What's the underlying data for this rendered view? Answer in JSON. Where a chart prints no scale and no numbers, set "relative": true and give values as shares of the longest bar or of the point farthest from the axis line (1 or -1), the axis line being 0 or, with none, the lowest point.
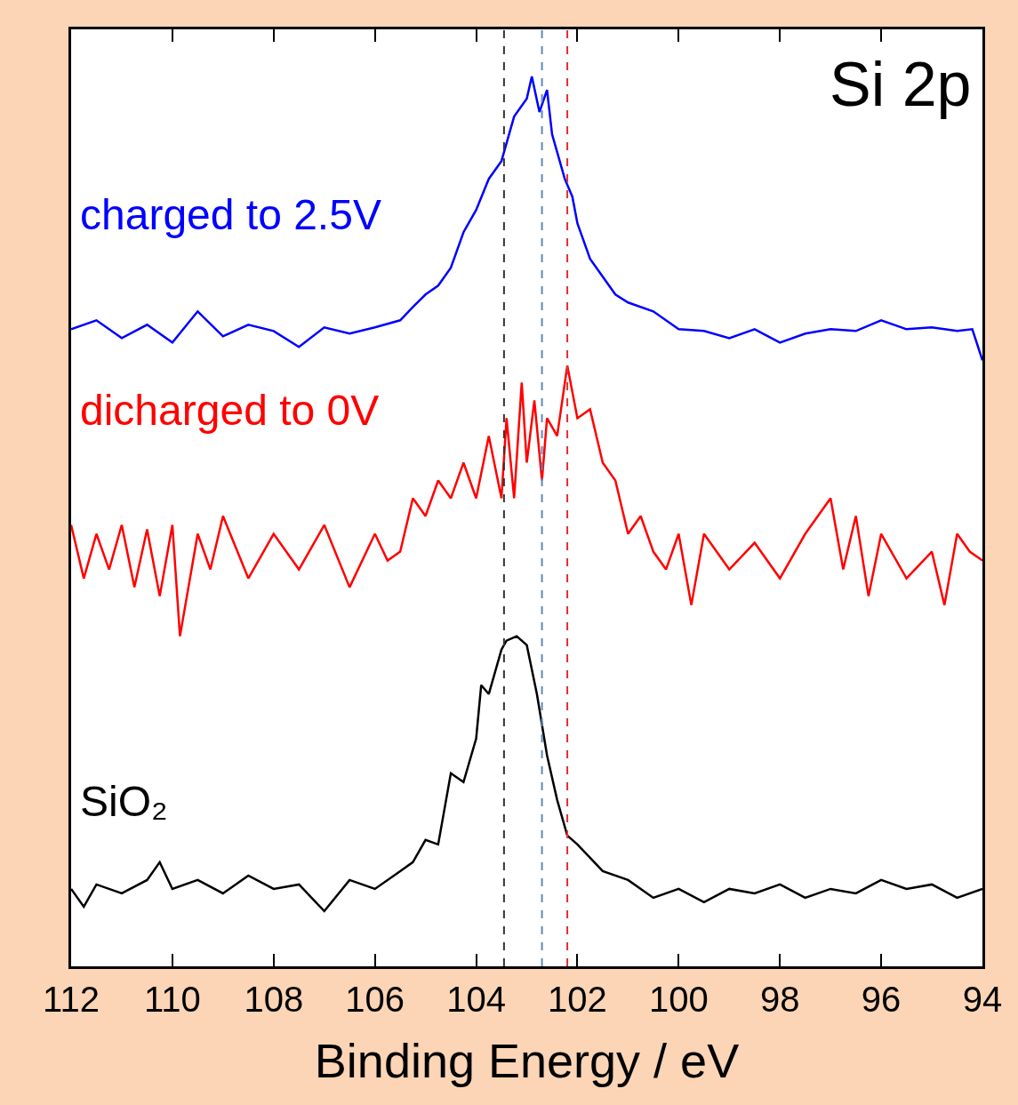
{
  "chart_data": {
    "type": "line",
    "xlabel": "Binding Energy / eV",
    "relative": true,
    "legend": false,
    "grid": false,
    "marker": "none",
    "line_style": "solid",
    "xlim": [
      112,
      94
    ],
    "xticks": [
      112,
      110,
      108,
      106,
      104,
      102,
      100,
      98,
      96,
      94
    ],
    "annotations": [
      "Si 2p"
    ],
    "ref_lines": [
      {
        "axis": "x",
        "value": 103.45,
        "color": "#333333",
        "line_style": "dashed"
      },
      {
        "axis": "x",
        "value": 102.7,
        "color": "#5a8ac0",
        "line_style": "dashed"
      },
      {
        "axis": "x",
        "value": 102.2,
        "color": "#e03030",
        "line_style": "dashed"
      }
    ],
    "series": [
      {
        "name": "charged to 2.5V",
        "color": "#0000ff",
        "x": [
          112,
          111.5,
          111,
          110.5,
          110,
          109.5,
          109,
          108.5,
          108,
          107.5,
          107,
          106.5,
          106,
          105.5,
          105.25,
          105,
          104.75,
          104.5,
          104.25,
          104,
          103.75,
          103.5,
          103.25,
          103,
          102.9,
          102.75,
          102.6,
          102.5,
          102.4,
          102.25,
          102.1,
          102,
          101.75,
          101.5,
          101.25,
          101,
          100.5,
          100,
          99.5,
          99,
          98.5,
          98,
          97.5,
          97,
          96.5,
          96,
          95.5,
          95,
          94.5,
          94.2,
          94
        ],
        "values": [
          0.716,
          0.726,
          0.706,
          0.721,
          0.701,
          0.736,
          0.708,
          0.721,
          0.714,
          0.696,
          0.718,
          0.711,
          0.718,
          0.726,
          0.741,
          0.755,
          0.765,
          0.785,
          0.825,
          0.85,
          0.885,
          0.905,
          0.955,
          0.975,
          1.0,
          0.96,
          0.985,
          0.935,
          0.915,
          0.885,
          0.865,
          0.835,
          0.795,
          0.775,
          0.755,
          0.746,
          0.736,
          0.716,
          0.714,
          0.706,
          0.716,
          0.701,
          0.711,
          0.716,
          0.714,
          0.726,
          0.716,
          0.718,
          0.714,
          0.716,
          0.681
        ]
      },
      {
        "name": "dicharged to 0V",
        "color": "#ff0000",
        "x": [
          112,
          111.75,
          111.5,
          111.25,
          111,
          110.75,
          110.5,
          110.25,
          110,
          109.85,
          109.5,
          109.25,
          109,
          108.5,
          108,
          107.5,
          107,
          106.5,
          106,
          105.75,
          105.5,
          105.25,
          105,
          104.75,
          104.5,
          104.25,
          104,
          103.75,
          103.5,
          103.4,
          103.25,
          103.1,
          103,
          102.85,
          102.7,
          102.6,
          102.4,
          102.2,
          102,
          101.75,
          101.5,
          101.25,
          101,
          100.75,
          100.5,
          100.25,
          100,
          99.75,
          99.5,
          99,
          98.5,
          98,
          97.5,
          97,
          96.75,
          96.5,
          96.25,
          96,
          95.5,
          95,
          94.75,
          94.5,
          94.25,
          94
        ],
        "values": [
          0.496,
          0.436,
          0.486,
          0.446,
          0.496,
          0.426,
          0.491,
          0.416,
          0.496,
          0.371,
          0.486,
          0.446,
          0.506,
          0.436,
          0.486,
          0.446,
          0.496,
          0.426,
          0.486,
          0.456,
          0.466,
          0.526,
          0.506,
          0.546,
          0.526,
          0.566,
          0.526,
          0.596,
          0.526,
          0.616,
          0.526,
          0.656,
          0.566,
          0.636,
          0.546,
          0.616,
          0.596,
          0.675,
          0.616,
          0.626,
          0.566,
          0.546,
          0.486,
          0.506,
          0.466,
          0.446,
          0.486,
          0.406,
          0.486,
          0.446,
          0.476,
          0.436,
          0.486,
          0.526,
          0.446,
          0.506,
          0.416,
          0.486,
          0.436,
          0.466,
          0.406,
          0.486,
          0.466,
          0.456
        ]
      },
      {
        "name": "SiO₂",
        "color": "#000000",
        "x": [
          112,
          111.75,
          111.5,
          111,
          110.5,
          110.25,
          110,
          109.5,
          109,
          108.5,
          108,
          107.5,
          107,
          106.5,
          106,
          105.5,
          105.25,
          105,
          104.75,
          104.5,
          104.25,
          104,
          103.9,
          103.75,
          103.5,
          103.4,
          103.2,
          103,
          102.8,
          102.6,
          102.4,
          102.2,
          102,
          101.75,
          101.5,
          101,
          100.5,
          100,
          99.5,
          99,
          98.5,
          98,
          97.5,
          97,
          96.5,
          96,
          95.5,
          95,
          94.5,
          94
        ],
        "values": [
          0.087,
          0.067,
          0.092,
          0.082,
          0.097,
          0.117,
          0.087,
          0.097,
          0.082,
          0.102,
          0.087,
          0.092,
          0.062,
          0.097,
          0.087,
          0.107,
          0.117,
          0.142,
          0.137,
          0.217,
          0.207,
          0.256,
          0.316,
          0.306,
          0.356,
          0.366,
          0.371,
          0.361,
          0.306,
          0.237,
          0.187,
          0.147,
          0.137,
          0.122,
          0.107,
          0.097,
          0.077,
          0.087,
          0.072,
          0.087,
          0.082,
          0.092,
          0.077,
          0.087,
          0.082,
          0.097,
          0.087,
          0.092,
          0.077,
          0.087
        ]
      }
    ]
  }
}
